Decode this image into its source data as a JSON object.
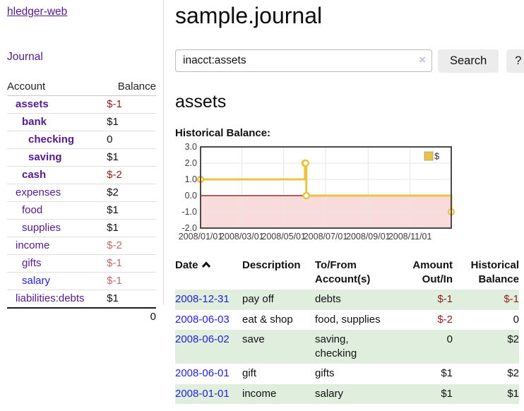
{
  "brand": "hledger-web",
  "nav": {
    "journal": "Journal"
  },
  "sidebar": {
    "header": {
      "account": "Account",
      "balance": "Balance"
    },
    "accounts": [
      {
        "name": "assets",
        "balance": "$-1",
        "level": 1,
        "bold": true,
        "tone": "neg"
      },
      {
        "name": "bank",
        "balance": "$1",
        "level": 2,
        "bold": true,
        "tone": "pos"
      },
      {
        "name": "checking",
        "balance": "0",
        "level": 3,
        "bold": true,
        "tone": "pos"
      },
      {
        "name": "saving",
        "balance": "$1",
        "level": 3,
        "bold": true,
        "tone": "pos"
      },
      {
        "name": "cash",
        "balance": "$-2",
        "level": 2,
        "bold": true,
        "tone": "neg"
      },
      {
        "name": "expenses",
        "balance": "$2",
        "level": 1,
        "bold": false,
        "tone": "pos"
      },
      {
        "name": "food",
        "balance": "$1",
        "level": 2,
        "bold": false,
        "tone": "pos"
      },
      {
        "name": "supplies",
        "balance": "$1",
        "level": 2,
        "bold": false,
        "tone": "pos"
      },
      {
        "name": "income",
        "balance": "$-2",
        "level": 1,
        "bold": false,
        "tone": "soft"
      },
      {
        "name": "gifts",
        "balance": "$-1",
        "level": 2,
        "bold": false,
        "tone": "soft"
      },
      {
        "name": "salary",
        "balance": "$-1",
        "level": 2,
        "bold": false,
        "tone": "soft",
        "unvisited": true
      },
      {
        "name": "liabilities:debts",
        "balance": "$1",
        "level": 1,
        "bold": false,
        "tone": "pos"
      }
    ],
    "total": "0"
  },
  "main": {
    "title": "sample.journal",
    "search": {
      "value": "inacct:assets",
      "clear_icon": "×",
      "search_label": "Search",
      "help_label": "?"
    },
    "account_heading": "assets",
    "chart_label": "Historical Balance:"
  },
  "chart_data": {
    "type": "line",
    "title": "Historical Balance",
    "legend": {
      "label": "$",
      "position": "top-right"
    },
    "series": [
      {
        "name": "$",
        "color": "#edc240",
        "step": true,
        "points": [
          {
            "date": "2008-01-01",
            "day": 0,
            "value": 1
          },
          {
            "date": "2008-06-01",
            "day": 152,
            "value": 2
          },
          {
            "date": "2008-06-02",
            "day": 153,
            "value": 2
          },
          {
            "date": "2008-06-03",
            "day": 154,
            "value": 0
          },
          {
            "date": "2008-12-31",
            "day": 365,
            "value": -1
          }
        ]
      }
    ],
    "ylim": [
      -2,
      3
    ],
    "xlim_days": [
      0,
      365
    ],
    "y_ticks": [
      {
        "value": 3,
        "label": "3.0"
      },
      {
        "value": 2,
        "label": "2.0"
      },
      {
        "value": 1,
        "label": "1.0"
      },
      {
        "value": 0,
        "label": "0.0"
      },
      {
        "value": -1,
        "label": "-1.0"
      },
      {
        "value": -2,
        "label": "-2.0"
      }
    ],
    "x_ticks": [
      {
        "day": 0,
        "label": "2008/01/01"
      },
      {
        "day": 60,
        "label": "2008/03/01"
      },
      {
        "day": 121,
        "label": "2008/05/01"
      },
      {
        "day": 182,
        "label": "2008/07/01"
      },
      {
        "day": 244,
        "label": "2008/09/01"
      },
      {
        "day": 305,
        "label": "2008/11/01"
      }
    ],
    "grid": true,
    "negative_region_color": "#f9dbdb",
    "zero_line_color": "#7d0b0b",
    "grid_color": "#e6e6e6",
    "border_color": "#4a4a4a"
  },
  "register": {
    "headers": {
      "date": "Date",
      "description": "Description",
      "tofrom_line1": "To/From",
      "tofrom_line2": "Account(s)",
      "amount_line1": "Amount",
      "amount_line2": "Out/In",
      "balance_line1": "Historical",
      "balance_line2": "Balance"
    },
    "rows": [
      {
        "date": "2008-12-31",
        "description": "pay off",
        "accounts": "debts",
        "amount": "$-1",
        "balance": "$-1"
      },
      {
        "date": "2008-06-03",
        "description": "eat & shop",
        "accounts": "food, supplies",
        "amount": "$-2",
        "balance": "0"
      },
      {
        "date": "2008-06-02",
        "description": "save",
        "accounts": "saving, checking",
        "amount": "0",
        "balance": "$2"
      },
      {
        "date": "2008-06-01",
        "description": "gift",
        "accounts": "gifts",
        "amount": "$1",
        "balance": "$2"
      },
      {
        "date": "2008-01-01",
        "description": "income",
        "accounts": "salary",
        "amount": "$1",
        "balance": "$1"
      }
    ]
  },
  "colors": {
    "link_purple": "#551a8b",
    "link_blue": "#2222dd",
    "negative_strong": "#8f1d1d",
    "negative_soft": "#c26a6e",
    "row_green": "#e0eede",
    "accent_gold": "#edc240"
  }
}
